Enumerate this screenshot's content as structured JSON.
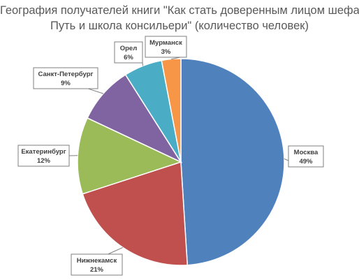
{
  "chart_data": {
    "type": "pie",
    "title_lines": [
      "География получателей книги \"Как стать доверенным лицом шефа:",
      "Путь и школа консильери\" (количество человек)"
    ],
    "slices": [
      {
        "label": "Москва",
        "value": 49,
        "value_label": "49%",
        "color": "#4f81bd"
      },
      {
        "label": "Нижнекамск",
        "value": 21,
        "value_label": "21%",
        "color": "#c0504d"
      },
      {
        "label": "Екатеринбург",
        "value": 12,
        "value_label": "12%",
        "color": "#9bbb59"
      },
      {
        "label": "Санкт-Петербург",
        "value": 9,
        "value_label": "9%",
        "color": "#8064a2"
      },
      {
        "label": "Орел",
        "value": 6,
        "value_label": "6%",
        "color": "#4bacc6"
      },
      {
        "label": "Мурманск",
        "value": 3,
        "value_label": "3%",
        "color": "#f79646"
      }
    ],
    "start_angle": "12 o'clock",
    "direction": "clockwise",
    "legend": "none",
    "data_labels": "callouts with category name and percent"
  }
}
